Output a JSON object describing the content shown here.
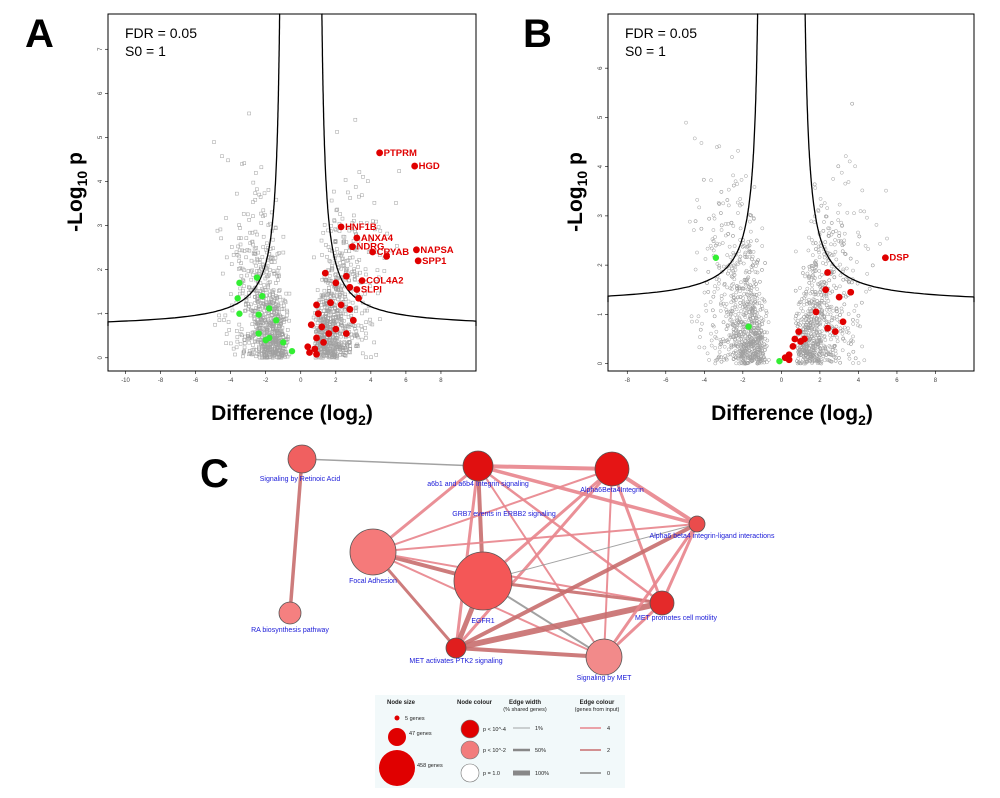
{
  "panels": {
    "a": "A",
    "b": "B",
    "c": "C"
  },
  "chart_data": [
    {
      "type": "scatter",
      "panel": "A",
      "annotation": [
        "FDR = 0.05",
        "S0 = 1"
      ],
      "xlabel": "Difference (log2)",
      "ylabel": "-Log10 p",
      "xlim": [
        -11,
        10
      ],
      "ylim": [
        -0.3,
        7.8
      ],
      "xticks": [
        -10,
        -8,
        -6,
        -4,
        -2,
        0,
        2,
        4,
        6,
        8
      ],
      "yticks": [
        0,
        1,
        2,
        3,
        4,
        5,
        6,
        7
      ],
      "threshold_curve": {
        "s0": 1,
        "c": 2.45,
        "floor": 0.72
      },
      "background_points": {
        "color": "#a0a0a0",
        "marker": "open-square"
      },
      "highlight_up": {
        "color": "#e00000",
        "points": [
          [
            4.5,
            4.65
          ],
          [
            6.5,
            4.35
          ],
          [
            2.3,
            2.97
          ],
          [
            3.2,
            2.72
          ],
          [
            2.95,
            2.52
          ],
          [
            6.6,
            2.45
          ],
          [
            4.1,
            2.4
          ],
          [
            4.9,
            2.3
          ],
          [
            6.7,
            2.2
          ],
          [
            1.4,
            1.92
          ],
          [
            2.6,
            1.85
          ],
          [
            3.5,
            1.75
          ],
          [
            2.0,
            1.7
          ],
          [
            3.2,
            1.55
          ],
          [
            2.8,
            1.6
          ],
          [
            3.3,
            1.35
          ],
          [
            0.9,
            1.2
          ],
          [
            1.7,
            1.25
          ],
          [
            2.3,
            1.2
          ],
          [
            1.0,
            1.0
          ],
          [
            2.8,
            1.1
          ],
          [
            3.0,
            0.85
          ],
          [
            0.6,
            0.75
          ],
          [
            1.2,
            0.7
          ],
          [
            2.0,
            0.65
          ],
          [
            2.6,
            0.55
          ],
          [
            1.6,
            0.55
          ],
          [
            0.9,
            0.45
          ],
          [
            1.3,
            0.35
          ],
          [
            0.8,
            0.2
          ],
          [
            0.5,
            0.12
          ],
          [
            0.9,
            0.08
          ],
          [
            0.4,
            0.25
          ]
        ]
      },
      "highlight_down": {
        "color": "#33ee33",
        "points": [
          [
            -2.5,
            1.82
          ],
          [
            -3.5,
            1.7
          ],
          [
            -2.2,
            1.4
          ],
          [
            -3.6,
            1.35
          ],
          [
            -1.8,
            1.12
          ],
          [
            -3.5,
            1.0
          ],
          [
            -2.4,
            0.98
          ],
          [
            -1.4,
            0.85
          ],
          [
            -2.4,
            0.55
          ],
          [
            -1.8,
            0.45
          ],
          [
            -1.0,
            0.35
          ],
          [
            -2.0,
            0.4
          ],
          [
            -0.5,
            0.15
          ]
        ]
      },
      "labels": [
        {
          "text": "PTPRM",
          "x": 4.5,
          "y": 4.65
        },
        {
          "text": "HGD",
          "x": 6.5,
          "y": 4.35
        },
        {
          "text": "HNF1B",
          "x": 2.3,
          "y": 2.97
        },
        {
          "text": "ANXA4",
          "x": 3.2,
          "y": 2.72
        },
        {
          "text": "NDRG",
          "x": 2.95,
          "y": 2.52
        },
        {
          "text": "CRYAB",
          "x": 4.1,
          "y": 2.4
        },
        {
          "text": "NAPSA",
          "x": 6.6,
          "y": 2.45
        },
        {
          "text": "SPP1",
          "x": 6.7,
          "y": 2.2
        },
        {
          "text": "COL4A2",
          "x": 3.5,
          "y": 1.75
        },
        {
          "text": "SLPI",
          "x": 3.2,
          "y": 1.55
        }
      ]
    },
    {
      "type": "scatter",
      "panel": "B",
      "annotation": [
        "FDR = 0.05",
        "S0 = 1"
      ],
      "xlabel": "Difference (log2)",
      "ylabel": "-Log10 p",
      "xlim": [
        -9,
        10
      ],
      "ylim": [
        -0.15,
        7.1
      ],
      "xticks": [
        -8,
        -6,
        -4,
        -2,
        0,
        2,
        4,
        6,
        8
      ],
      "yticks": [
        0,
        1,
        2,
        3,
        4,
        5,
        6
      ],
      "threshold_curve": {
        "s0": 1,
        "c": 2.3,
        "floor": 1.25
      },
      "background_points": {
        "color": "#a0a0a0",
        "marker": "open-circle"
      },
      "highlight_up": {
        "color": "#e00000",
        "points": [
          [
            5.4,
            2.15
          ],
          [
            2.4,
            1.85
          ],
          [
            3.6,
            1.45
          ],
          [
            2.3,
            1.5
          ],
          [
            3.0,
            1.35
          ],
          [
            1.8,
            1.05
          ],
          [
            3.2,
            0.85
          ],
          [
            0.9,
            0.65
          ],
          [
            2.4,
            0.72
          ],
          [
            1.2,
            0.5
          ],
          [
            2.8,
            0.65
          ],
          [
            0.7,
            0.5
          ],
          [
            0.6,
            0.35
          ],
          [
            0.4,
            0.18
          ],
          [
            1.0,
            0.45
          ],
          [
            0.2,
            0.12
          ],
          [
            0.4,
            0.08
          ]
        ]
      },
      "highlight_down": {
        "color": "#33ee33",
        "points": [
          [
            -3.4,
            2.15
          ],
          [
            -1.7,
            0.75
          ],
          [
            -0.1,
            0.05
          ]
        ]
      },
      "labels": [
        {
          "text": "DSP",
          "x": 5.4,
          "y": 2.15
        }
      ]
    }
  ],
  "network": {
    "nodes": [
      {
        "id": "retinoic",
        "label": "Signaling by Retinoic Acid",
        "pval": "p < 10^-2",
        "color": "#f06060",
        "size": 14
      },
      {
        "id": "a6b1",
        "label": "a6b1 and a6b4 Integrin signaling",
        "pval": "p < 10^-4",
        "color": "#e01010",
        "size": 15
      },
      {
        "id": "alpha6",
        "label": "Alpha6Beta4Integrin",
        "pval": "p < 10^-4",
        "color": "#e51515",
        "size": 17
      },
      {
        "id": "grb7",
        "label": "GRB7 events in ERBB2 signaling",
        "pval": "",
        "color": "#e06060",
        "size": 0
      },
      {
        "id": "a6b4lig",
        "label": "Alpha6 beta4 integrin-ligand interactions",
        "pval": "p < 10^-2",
        "color": "#ea4c4c",
        "size": 8
      },
      {
        "id": "focal",
        "label": "Focal Adhesion",
        "pval": "p < 10^-2",
        "color": "#f57a7a",
        "size": 23
      },
      {
        "id": "egfr1",
        "label": "EGFR1",
        "pval": "p < 10^-2",
        "color": "#f45757",
        "size": 29
      },
      {
        "id": "metmot",
        "label": "MET promotes cell motility",
        "pval": "p < 10^-4",
        "color": "#e42a2a",
        "size": 12
      },
      {
        "id": "rabio",
        "label": "RA biosynthesis pathway",
        "pval": "p < 10^-2",
        "color": "#f58080",
        "size": 11
      },
      {
        "id": "metptk2",
        "label": "MET activates PTK2 signaling",
        "pval": "p < 10^-4",
        "color": "#e01e1e",
        "size": 10
      },
      {
        "id": "sigmet",
        "label": "Signaling by MET",
        "pval": "p < 10^-2",
        "color": "#f28a8a",
        "size": 18
      }
    ],
    "edges": [
      {
        "from": "retinoic",
        "to": "rabio",
        "color": "#c86e6e",
        "width": 3.5
      },
      {
        "from": "retinoic",
        "to": "a6b1",
        "color": "#999999",
        "width": 1.5
      },
      {
        "from": "a6b1",
        "to": "alpha6",
        "color": "#e8858c",
        "width": 4
      },
      {
        "from": "a6b1",
        "to": "focal",
        "color": "#e8858c",
        "width": 3
      },
      {
        "from": "a6b1",
        "to": "egfr1",
        "color": "#c86e6e",
        "width": 4
      },
      {
        "from": "a6b1",
        "to": "a6b4lig",
        "color": "#e8858c",
        "width": 3.5
      },
      {
        "from": "a6b1",
        "to": "metmot",
        "color": "#e8858c",
        "width": 2.5
      },
      {
        "from": "a6b1",
        "to": "metptk2",
        "color": "#e8858c",
        "width": 3
      },
      {
        "from": "a6b1",
        "to": "sigmet",
        "color": "#e8858c",
        "width": 2
      },
      {
        "from": "alpha6",
        "to": "focal",
        "color": "#e8858c",
        "width": 2
      },
      {
        "from": "alpha6",
        "to": "egfr1",
        "color": "#e8858c",
        "width": 3
      },
      {
        "from": "alpha6",
        "to": "a6b4lig",
        "color": "#e8858c",
        "width": 4
      },
      {
        "from": "alpha6",
        "to": "metmot",
        "color": "#e8858c",
        "width": 3
      },
      {
        "from": "alpha6",
        "to": "metptk2",
        "color": "#e8858c",
        "width": 3
      },
      {
        "from": "alpha6",
        "to": "sigmet",
        "color": "#e8858c",
        "width": 2
      },
      {
        "from": "focal",
        "to": "a6b4lig",
        "color": "#e8858c",
        "width": 2
      },
      {
        "from": "focal",
        "to": "egfr1",
        "color": "#c86e6e",
        "width": 4
      },
      {
        "from": "focal",
        "to": "metmot",
        "color": "#e8858c",
        "width": 2
      },
      {
        "from": "focal",
        "to": "metptk2",
        "color": "#c86e6e",
        "width": 3
      },
      {
        "from": "focal",
        "to": "sigmet",
        "color": "#e8858c",
        "width": 2
      },
      {
        "from": "egfr1",
        "to": "a6b4lig",
        "color": "#999999",
        "width": 1
      },
      {
        "from": "egfr1",
        "to": "metmot",
        "color": "#c86e6e",
        "width": 3
      },
      {
        "from": "egfr1",
        "to": "metptk2",
        "color": "#c86e6e",
        "width": 5
      },
      {
        "from": "egfr1",
        "to": "sigmet",
        "color": "#999999",
        "width": 2
      },
      {
        "from": "metmot",
        "to": "metptk2",
        "color": "#c86e6e",
        "width": 6
      },
      {
        "from": "metmot",
        "to": "sigmet",
        "color": "#e8858c",
        "width": 3
      },
      {
        "from": "metmot",
        "to": "a6b4lig",
        "color": "#e8858c",
        "width": 3
      },
      {
        "from": "metptk2",
        "to": "sigmet",
        "color": "#c86e6e",
        "width": 4
      },
      {
        "from": "metptk2",
        "to": "a6b4lig",
        "color": "#c86e6e",
        "width": 4
      },
      {
        "from": "sigmet",
        "to": "a6b4lig",
        "color": "#e8858c",
        "width": 3
      }
    ]
  },
  "legend": {
    "node_size": {
      "title": "Node size",
      "items": [
        "5 genes",
        "47 genes",
        "458 genes"
      ]
    },
    "node_colour": {
      "title": "Node colour",
      "items": [
        "p < 10^-4",
        "p < 10^-2",
        "p = 1.0"
      ]
    },
    "edge_width": {
      "title": "Edge width",
      "subtitle": "(% shared genes)",
      "items": [
        "1%",
        "50%",
        "100%"
      ]
    },
    "edge_colour": {
      "title": "Edge colour",
      "subtitle": "(genes from input)",
      "items": [
        "4",
        "2",
        "0"
      ]
    }
  }
}
